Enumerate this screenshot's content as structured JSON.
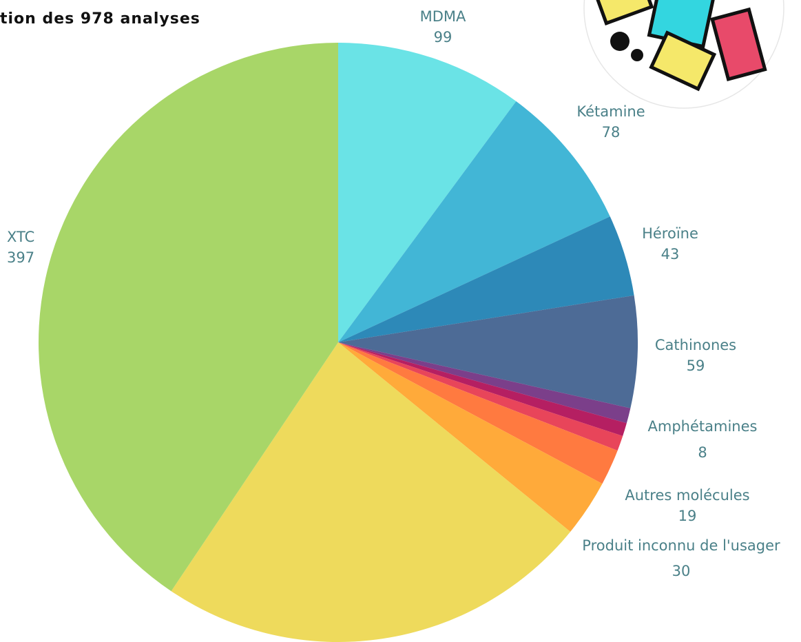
{
  "chart_data": {
    "type": "pie",
    "title": "tion des 978 analyses",
    "categories": [
      "MDMA",
      "Kétamine",
      "Héroïne",
      "Cathinones",
      "Amphétamines",
      null,
      null,
      "Autres molécules",
      "Produit inconnu de l'usager",
      null,
      "XTC"
    ],
    "values": [
      99,
      78,
      43,
      59,
      8,
      7,
      8,
      19,
      30,
      230,
      397
    ],
    "colors": [
      "#6ae3e6",
      "#42b6d6",
      "#2d89b8",
      "#4d6b96",
      "#7b3f8a",
      "#b51f62",
      "#e8455a",
      "#ff7a40",
      "#ffaa3a",
      "#eeda5c",
      "#a8d668"
    ]
  }
}
